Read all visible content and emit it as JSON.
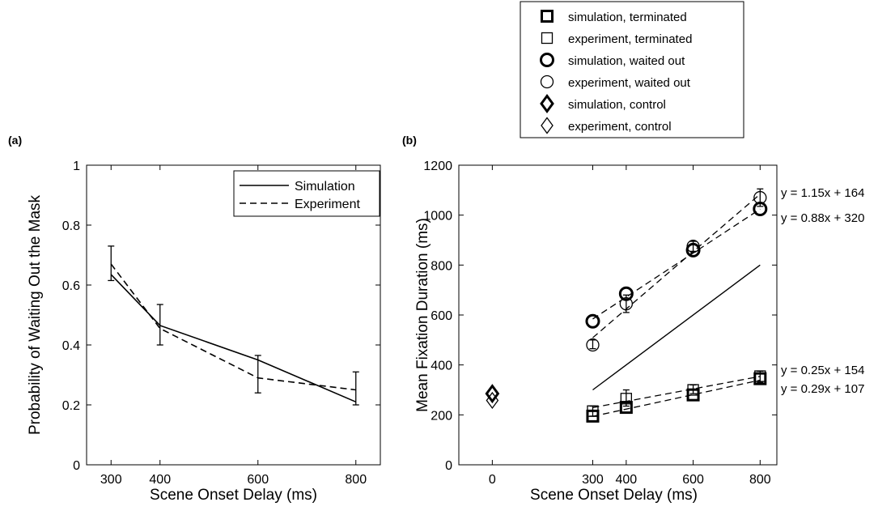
{
  "chart_data": [
    {
      "panel_label": "(a)",
      "type": "line",
      "xlabel": "Scene Onset Delay (ms)",
      "ylabel": "Probability of Waiting Out the Mask",
      "xlim": [
        250,
        850
      ],
      "ylim": [
        0,
        1
      ],
      "xticks": [
        300,
        400,
        600,
        800
      ],
      "yticks": [
        0,
        0.2,
        0.4,
        0.6,
        0.8,
        1
      ],
      "ytick_labels": [
        "0",
        "0.2",
        "0.4",
        "0.6",
        "0.8",
        "1"
      ],
      "legend": {
        "position": "top-right",
        "entries": [
          "Simulation",
          "Experiment"
        ]
      },
      "series": [
        {
          "name": "Simulation",
          "style": "solid",
          "x": [
            300,
            400,
            600,
            800
          ],
          "values": [
            0.635,
            0.465,
            0.35,
            0.21
          ]
        },
        {
          "name": "Experiment",
          "style": "dashed",
          "x": [
            300,
            400,
            600,
            800
          ],
          "values": [
            0.67,
            0.455,
            0.29,
            0.25
          ]
        }
      ],
      "error_bars": [
        {
          "x": 300,
          "low": 0.615,
          "high": 0.73
        },
        {
          "x": 400,
          "low": 0.4,
          "high": 0.535
        },
        {
          "x": 600,
          "low": 0.24,
          "high": 0.365
        },
        {
          "x": 800,
          "low": 0.2,
          "high": 0.31
        }
      ]
    },
    {
      "panel_label": "(b)",
      "type": "scatter",
      "xlabel": "Scene Onset Delay (ms)",
      "ylabel": "Mean Fixation Duration (ms)",
      "xlim": [
        -100,
        850
      ],
      "ylim": [
        0,
        1200
      ],
      "xticks": [
        0,
        300,
        400,
        600,
        800
      ],
      "yticks": [
        0,
        200,
        400,
        600,
        800,
        1000,
        1200
      ],
      "legend": {
        "position": "outside-top",
        "entries": [
          {
            "label": "simulation, terminated",
            "marker": "square",
            "weight": "bold"
          },
          {
            "label": "experiment, terminated",
            "marker": "square",
            "weight": "normal"
          },
          {
            "label": "simulation, waited out",
            "marker": "circle",
            "weight": "bold"
          },
          {
            "label": "experiment, waited out",
            "marker": "circle",
            "weight": "normal"
          },
          {
            "label": "simulation, control",
            "marker": "diamond",
            "weight": "bold"
          },
          {
            "label": "experiment, control",
            "marker": "diamond",
            "weight": "normal"
          }
        ]
      },
      "series": [
        {
          "key": "simulation, terminated",
          "marker": "square",
          "weight": "bold",
          "x": [
            300,
            400,
            600,
            800
          ],
          "values": [
            195,
            230,
            280,
            345
          ]
        },
        {
          "key": "experiment, terminated",
          "marker": "square",
          "weight": "normal",
          "x": [
            300,
            400,
            600,
            800
          ],
          "values": [
            215,
            265,
            300,
            355
          ]
        },
        {
          "key": "simulation, waited out",
          "marker": "circle",
          "weight": "bold",
          "x": [
            300,
            400,
            600,
            800
          ],
          "values": [
            575,
            685,
            860,
            1025
          ]
        },
        {
          "key": "experiment, waited out",
          "marker": "circle",
          "weight": "normal",
          "x": [
            300,
            400,
            600,
            800
          ],
          "values": [
            480,
            645,
            875,
            1070
          ]
        },
        {
          "key": "simulation, control",
          "marker": "diamond",
          "weight": "bold",
          "x": [
            0
          ],
          "values": [
            285
          ]
        },
        {
          "key": "experiment, control",
          "marker": "diamond",
          "weight": "normal",
          "x": [
            0
          ],
          "values": [
            258
          ]
        }
      ],
      "error_bars": [
        {
          "x": 800,
          "low": 1035,
          "high": 1105
        },
        {
          "x": 600,
          "low": 855,
          "high": 895
        },
        {
          "x": 400,
          "low": 610,
          "high": 680
        },
        {
          "x": 300,
          "low": 465,
          "high": 500
        },
        {
          "x": 400,
          "low": 235,
          "high": 300
        },
        {
          "x": 300,
          "low": 195,
          "high": 235
        },
        {
          "x": 600,
          "low": 285,
          "high": 320
        },
        {
          "x": 800,
          "low": 330,
          "high": 375
        }
      ],
      "fit_lines": [
        {
          "style": "dashed",
          "slope": 1.15,
          "intercept": 164,
          "label": "y = 1.15x + 164"
        },
        {
          "style": "dashed",
          "slope": 0.88,
          "intercept": 320,
          "label": "y = 0.88x + 320"
        },
        {
          "style": "dashed",
          "slope": 0.25,
          "intercept": 154,
          "label": "y = 0.25x + 154"
        },
        {
          "style": "dashed",
          "slope": 0.29,
          "intercept": 107,
          "label": "y = 0.29x + 107"
        }
      ],
      "reference_line": {
        "style": "solid",
        "x": [
          300,
          800
        ],
        "values": [
          300,
          800
        ]
      }
    }
  ]
}
